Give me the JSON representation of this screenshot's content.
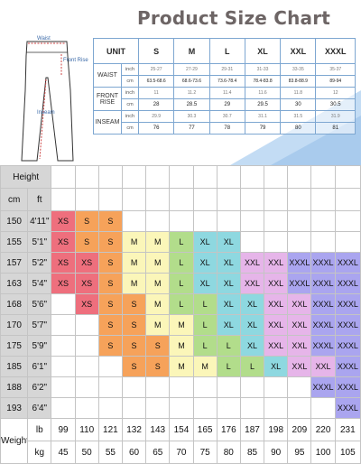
{
  "title": "Product Size Chart",
  "diagram": {
    "waist": "Waist",
    "front_rise": "Front Rise",
    "inseam": "Inseam"
  },
  "size_table": {
    "unit_label": "UNIT",
    "sizes": [
      "S",
      "M",
      "L",
      "XL",
      "XXL",
      "XXXL"
    ],
    "rows": [
      {
        "name": "WAIST",
        "inch": [
          "25-27",
          "27-29",
          "29-31",
          "31-33",
          "33-35",
          "35-37"
        ],
        "cm": [
          "63.5-68.6",
          "68.6-73.6",
          "73.6-78.4",
          "78.4-83.8",
          "83.8-88.9",
          "89-94"
        ]
      },
      {
        "name": "FRONT RISE",
        "inch": [
          "11",
          "11.2",
          "11.4",
          "11.6",
          "11.8",
          "12"
        ],
        "cm": [
          "28",
          "28.5",
          "29",
          "29.5",
          "30",
          "30.5"
        ]
      },
      {
        "name": "INSEAM",
        "inch": [
          "29.9",
          "30.3",
          "30.7",
          "31.1",
          "31.5",
          "31.9"
        ],
        "cm": [
          "76",
          "77",
          "78",
          "79",
          "80",
          "81"
        ]
      }
    ],
    "units": {
      "inch": "inch",
      "cm": "cm"
    }
  },
  "grid": {
    "height_label": "Height",
    "cm_label": "cm",
    "ft_label": "ft",
    "weight_label": "Weight",
    "lb_label": "lb",
    "kg_label": "kg",
    "lb": [
      "99",
      "110",
      "121",
      "132",
      "143",
      "154",
      "165",
      "176",
      "187",
      "198",
      "209",
      "220",
      "231"
    ],
    "kg": [
      "45",
      "50",
      "55",
      "60",
      "65",
      "70",
      "75",
      "80",
      "85",
      "90",
      "95",
      "100",
      "105"
    ],
    "rows": [
      {
        "cm": "150",
        "ft": "4'11\"",
        "cells": [
          "XS",
          "S",
          "S",
          "",
          "",
          "",
          "",
          "",
          "",
          "",
          "",
          "",
          ""
        ]
      },
      {
        "cm": "155",
        "ft": "5'1\"",
        "cells": [
          "XS",
          "S",
          "S",
          "M",
          "M",
          "L",
          "XL",
          "XL",
          "",
          "",
          "",
          "",
          ""
        ]
      },
      {
        "cm": "157",
        "ft": "5'2\"",
        "cells": [
          "XS",
          "XS",
          "S",
          "M",
          "M",
          "L",
          "XL",
          "XL",
          "XXL",
          "XXL",
          "XXXL",
          "XXXL",
          "XXXL"
        ]
      },
      {
        "cm": "163",
        "ft": "5'4\"",
        "cells": [
          "XS",
          "XS",
          "S",
          "M",
          "M",
          "L",
          "XL",
          "XL",
          "XXL",
          "XXL",
          "XXXL",
          "XXXL",
          "XXXL"
        ]
      },
      {
        "cm": "168",
        "ft": "5'6\"",
        "cells": [
          "",
          "XS",
          "S",
          "S",
          "M",
          "L",
          "L",
          "XL",
          "XL",
          "XXL",
          "XXL",
          "XXXL",
          "XXXL"
        ]
      },
      {
        "cm": "170",
        "ft": "5'7\"",
        "cells": [
          "",
          "",
          "S",
          "S",
          "M",
          "M",
          "L",
          "XL",
          "XL",
          "XXL",
          "XXL",
          "XXXL",
          "XXXL"
        ]
      },
      {
        "cm": "175",
        "ft": "5'9\"",
        "cells": [
          "",
          "",
          "S",
          "S",
          "S",
          "M",
          "L",
          "L",
          "XL",
          "XXL",
          "XXL",
          "XXXL",
          "XXXL"
        ]
      },
      {
        "cm": "185",
        "ft": "6'1\"",
        "cells": [
          "",
          "",
          "",
          "S",
          "S",
          "M",
          "M",
          "L",
          "L",
          "XL",
          "XXL",
          "XXL",
          "XXXL"
        ]
      },
      {
        "cm": "188",
        "ft": "6'2\"",
        "cells": [
          "",
          "",
          "",
          "",
          "",
          "",
          "",
          "",
          "",
          "",
          "",
          "XXXL",
          "XXXL"
        ]
      },
      {
        "cm": "193",
        "ft": "6'4\"",
        "cells": [
          "",
          "",
          "",
          "",
          "",
          "",
          "",
          "",
          "",
          "",
          "",
          "",
          "XXXL"
        ]
      }
    ]
  },
  "colors": {
    "XS": "#ee6f7d",
    "S": "#f6a25a",
    "M": "#fbf6b9",
    "L": "#b2dd8b",
    "XL": "#8ed8e0",
    "XXL": "#e6b5e9",
    "XXXL": "#aaa5ef",
    "grid_empty": "#ffffff",
    "header_gray": "#d6d6d6",
    "accent_blue": "#c3dcf4"
  }
}
